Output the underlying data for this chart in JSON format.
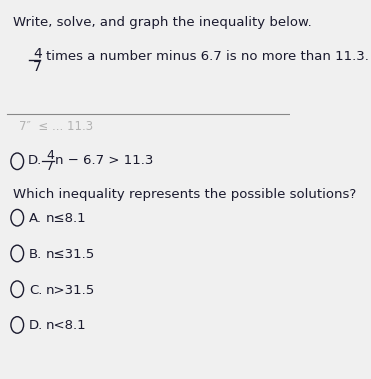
{
  "background_color": "#f0f0f0",
  "title_line1": "Write, solve, and graph the inequality below.",
  "problem_line1": "4",
  "problem_line2": "7",
  "problem_line3": "times a number minus 6.7 is no more than 11.3.",
  "partial_option_text": "7″  ≤ ... 11.3",
  "option_d_label": "D.",
  "option_d_fraction_num": "4",
  "option_d_fraction_den": "7",
  "option_d_text": "n − 6.7 > 11.3",
  "question": "Which inequality represents the possible solutions?",
  "choices": [
    {
      "label": "A.",
      "text": "n≤8.1"
    },
    {
      "label": "B.",
      "text": "n≤31.5"
    },
    {
      "label": "C.",
      "text": "n>31.5"
    },
    {
      "label": "D.",
      "text": "n<8.1"
    }
  ],
  "font_color": "#1a1a2e",
  "circle_color": "#1a1a2e",
  "line_color": "#888888"
}
